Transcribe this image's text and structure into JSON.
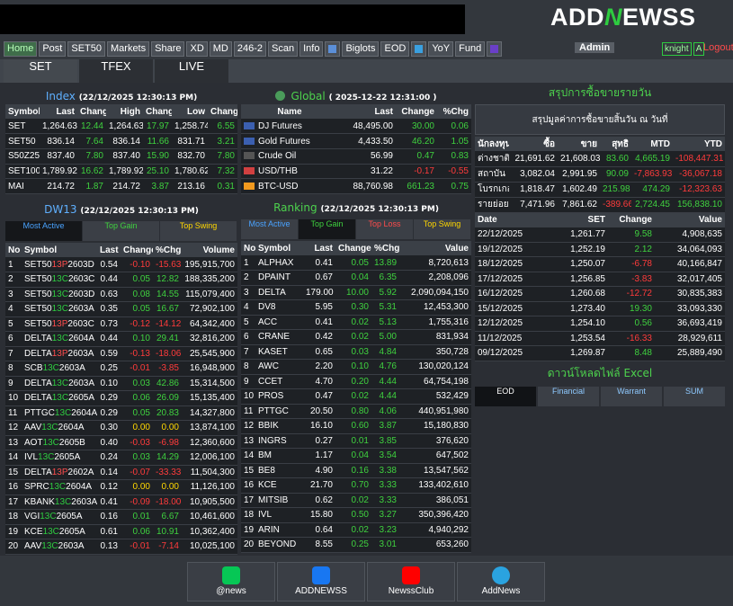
{
  "header": {
    "logo": [
      "ADD",
      "N",
      "EWSS"
    ]
  },
  "nav": {
    "items": [
      "Home",
      "Post",
      "SET50",
      "Markets",
      "Share",
      "XD",
      "MD",
      "246-2",
      "Scan",
      "Info",
      "Biglots",
      "EOD",
      "YoY",
      "Fund"
    ],
    "user": "Admin",
    "account": "knight",
    "level": "A",
    "logout": "Logout"
  },
  "tabs": [
    "SET",
    "TFEX",
    "LIVE"
  ],
  "index": {
    "title": "Index",
    "time": "(22/12/2025 12:30:13 PM)",
    "columns": [
      "Symbol",
      "Last",
      "Change",
      "High",
      "Change",
      "Low",
      "Change"
    ],
    "rows": [
      [
        "SET",
        "1,264.63",
        "12.44",
        "1,264.63",
        "17.97",
        "1,258.74",
        "6.55"
      ],
      [
        "SET50",
        "836.14",
        "7.64",
        "836.14",
        "11.66",
        "831.71",
        "3.21"
      ],
      [
        "S50Z25",
        "837.40",
        "7.80",
        "837.40",
        "15.90",
        "832.70",
        "7.80"
      ],
      [
        "SET100",
        "1,789.92",
        "16.62",
        "1,789.92",
        "25.10",
        "1,780.62",
        "7.32"
      ],
      [
        "MAI",
        "214.72",
        "1.87",
        "214.72",
        "3.87",
        "213.16",
        "0.31"
      ]
    ]
  },
  "global": {
    "title": "Global",
    "time": "( 2025-12-22 12:31:00 )",
    "columns": [
      "Name",
      "Last",
      "Change",
      "%Chg"
    ],
    "rows": [
      [
        "DJ Futures",
        "48,495.00",
        "30.00",
        "0.06"
      ],
      [
        "Gold Futures",
        "4,433.50",
        "46.20",
        "1.05"
      ],
      [
        "Crude Oil",
        "56.99",
        "0.47",
        "0.83"
      ],
      [
        "USD/THB",
        "31.22",
        "-0.17",
        "-0.55"
      ],
      [
        "BTC-USD",
        "88,760.98",
        "661.23",
        "0.75"
      ]
    ]
  },
  "summary": {
    "title": "สรุปการซื้อขายรายวัน",
    "subtitle": "สรุปมูลค่าการซื้อขายสิ้นวัน ณ วันที่",
    "columns": [
      "นักลงทุน",
      "ซื้อ",
      "ขาย",
      "สุทธิ",
      "MTD",
      "YTD"
    ],
    "rows": [
      [
        "ต่างชาติ",
        "21,691.62",
        "21,608.03",
        "83.60",
        "4,665.19",
        "-108,447.31"
      ],
      [
        "สถาบัน",
        "3,082.04",
        "2,991.95",
        "90.09",
        "-7,863.93",
        "-36,067.18"
      ],
      [
        "โบรกเกอร์",
        "1,818.47",
        "1,602.49",
        "215.98",
        "474.29",
        "-12,323.63"
      ],
      [
        "รายย่อย",
        "7,471.96",
        "7,861.62",
        "-389.66",
        "2,724.45",
        "156,838.10"
      ]
    ]
  },
  "history": {
    "columns": [
      "Date",
      "SET",
      "Change",
      "Value"
    ],
    "rows": [
      [
        "22/12/2025",
        "1,261.77",
        "9.58",
        "4,908,635"
      ],
      [
        "19/12/2025",
        "1,252.19",
        "2.12",
        "34,064,093"
      ],
      [
        "18/12/2025",
        "1,250.07",
        "-6.78",
        "40,166,847"
      ],
      [
        "17/12/2025",
        "1,256.85",
        "-3.83",
        "32,017,405"
      ],
      [
        "16/12/2025",
        "1,260.68",
        "-12.72",
        "30,835,383"
      ],
      [
        "15/12/2025",
        "1,273.40",
        "19.30",
        "33,093,330"
      ],
      [
        "12/12/2025",
        "1,254.10",
        "0.56",
        "36,693,419"
      ],
      [
        "11/12/2025",
        "1,253.54",
        "-16.33",
        "28,929,611"
      ],
      [
        "09/12/2025",
        "1,269.87",
        "8.48",
        "25,889,490"
      ]
    ]
  },
  "download": {
    "title": "ดาวน์โหลดไฟล์ Excel",
    "buttons": [
      "EOD",
      "Financial",
      "Warrant",
      "SUM"
    ]
  },
  "dw": {
    "title": "DW13",
    "time": "(22/12/2025 12:30:13 PM)",
    "tabs": [
      "Most Active",
      "Top Gain",
      "Top Swing"
    ],
    "columns": [
      "No",
      "Symbol",
      "Last",
      "Change",
      "%Chg",
      "Volume"
    ],
    "rows": [
      [
        "1",
        [
          "SET50",
          "13P",
          "2603D"
        ],
        "0.54",
        "-0.10",
        "-15.63",
        "195,915,700"
      ],
      [
        "2",
        [
          "SET50",
          "13C",
          "2603C"
        ],
        "0.44",
        "0.05",
        "12.82",
        "188,335,200"
      ],
      [
        "3",
        [
          "SET50",
          "13C",
          "2603D"
        ],
        "0.63",
        "0.08",
        "14.55",
        "115,079,400"
      ],
      [
        "4",
        [
          "SET50",
          "13C",
          "2603A"
        ],
        "0.35",
        "0.05",
        "16.67",
        "72,902,100"
      ],
      [
        "5",
        [
          "SET50",
          "13P",
          "2603C"
        ],
        "0.73",
        "-0.12",
        "-14.12",
        "64,342,400"
      ],
      [
        "6",
        [
          "DELTA",
          "13C",
          "2604A"
        ],
        "0.44",
        "0.10",
        "29.41",
        "32,816,200"
      ],
      [
        "7",
        [
          "DELTA",
          "13P",
          "2603A"
        ],
        "0.59",
        "-0.13",
        "-18.06",
        "25,545,900"
      ],
      [
        "8",
        [
          "SCB",
          "13C",
          "2603A"
        ],
        "0.25",
        "-0.01",
        "-3.85",
        "16,948,900"
      ],
      [
        "9",
        [
          "DELTA",
          "13C",
          "2603A"
        ],
        "0.10",
        "0.03",
        "42.86",
        "15,314,500"
      ],
      [
        "10",
        [
          "DELTA",
          "13C",
          "2605A"
        ],
        "0.29",
        "0.06",
        "26.09",
        "15,135,400"
      ],
      [
        "11",
        [
          "PTTGC",
          "13C",
          "2604A"
        ],
        "0.29",
        "0.05",
        "20.83",
        "14,327,800"
      ],
      [
        "12",
        [
          "AAV",
          "13C",
          "2604A"
        ],
        "0.30",
        "0.00",
        "0.00",
        "13,874,100"
      ],
      [
        "13",
        [
          "AOT",
          "13C",
          "2605B"
        ],
        "0.40",
        "-0.03",
        "-6.98",
        "12,360,600"
      ],
      [
        "14",
        [
          "IVL",
          "13C",
          "2605A"
        ],
        "0.24",
        "0.03",
        "14.29",
        "12,006,100"
      ],
      [
        "15",
        [
          "DELTA",
          "13P",
          "2602A"
        ],
        "0.14",
        "-0.07",
        "-33.33",
        "11,504,300"
      ],
      [
        "16",
        [
          "SPRC",
          "13C",
          "2604A"
        ],
        "0.12",
        "0.00",
        "0.00",
        "11,126,100"
      ],
      [
        "17",
        [
          "KBANK",
          "13C",
          "2603A"
        ],
        "0.41",
        "-0.09",
        "-18.00",
        "10,905,500"
      ],
      [
        "18",
        [
          "VGI",
          "13C",
          "2605A"
        ],
        "0.16",
        "0.01",
        "6.67",
        "10,461,600"
      ],
      [
        "19",
        [
          "KCE",
          "13C",
          "2605A"
        ],
        "0.61",
        "0.06",
        "10.91",
        "10,362,400"
      ],
      [
        "20",
        [
          "AAV",
          "13C",
          "2603A"
        ],
        "0.13",
        "-0.01",
        "-7.14",
        "10,025,100"
      ]
    ]
  },
  "ranking": {
    "title": "Ranking",
    "time": "(22/12/2025 12:30:13 PM)",
    "tabs": [
      "Most Active",
      "Top Gain",
      "Top Loss",
      "Top Swing"
    ],
    "columns": [
      "No",
      "Symbol",
      "Last",
      "Change",
      "%Chg",
      "Value"
    ],
    "rows": [
      [
        "1",
        "ALPHAX",
        "0.41",
        "0.05",
        "13.89",
        "8,720,613"
      ],
      [
        "2",
        "DPAINT",
        "0.67",
        "0.04",
        "6.35",
        "2,208,096"
      ],
      [
        "3",
        "DELTA",
        "179.00",
        "10.00",
        "5.92",
        "2,090,094,150"
      ],
      [
        "4",
        "DV8",
        "5.95",
        "0.30",
        "5.31",
        "12,453,300"
      ],
      [
        "5",
        "ACC",
        "0.41",
        "0.02",
        "5.13",
        "1,755,316"
      ],
      [
        "6",
        "CRANE",
        "0.42",
        "0.02",
        "5.00",
        "831,934"
      ],
      [
        "7",
        "KASET",
        "0.65",
        "0.03",
        "4.84",
        "350,728"
      ],
      [
        "8",
        "AWC",
        "2.20",
        "0.10",
        "4.76",
        "130,020,124"
      ],
      [
        "9",
        "CCET",
        "4.70",
        "0.20",
        "4.44",
        "64,754,198"
      ],
      [
        "10",
        "PROS",
        "0.47",
        "0.02",
        "4.44",
        "532,429"
      ],
      [
        "11",
        "PTTGC",
        "20.50",
        "0.80",
        "4.06",
        "440,951,980"
      ],
      [
        "12",
        "BBIK",
        "16.10",
        "0.60",
        "3.87",
        "15,180,830"
      ],
      [
        "13",
        "INGRS",
        "0.27",
        "0.01",
        "3.85",
        "376,620"
      ],
      [
        "14",
        "BM",
        "1.17",
        "0.04",
        "3.54",
        "647,502"
      ],
      [
        "15",
        "BE8",
        "4.90",
        "0.16",
        "3.38",
        "13,547,562"
      ],
      [
        "16",
        "KCE",
        "21.70",
        "0.70",
        "3.33",
        "133,402,610"
      ],
      [
        "17",
        "MITSIB",
        "0.62",
        "0.02",
        "3.33",
        "386,051"
      ],
      [
        "18",
        "IVL",
        "15.80",
        "0.50",
        "3.27",
        "350,396,420"
      ],
      [
        "19",
        "ARIN",
        "0.64",
        "0.02",
        "3.23",
        "4,940,292"
      ],
      [
        "20",
        "BEYOND",
        "8.55",
        "0.25",
        "3.01",
        "653,260"
      ]
    ]
  },
  "footer": {
    "links": [
      "@news",
      "ADDNEWSS",
      "NewssClub",
      "AddNews"
    ]
  }
}
